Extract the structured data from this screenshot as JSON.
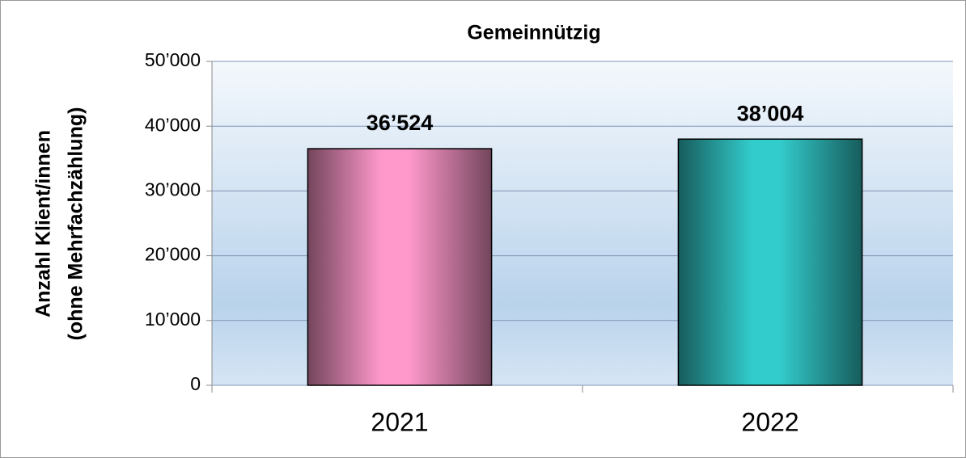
{
  "chart_data": {
    "type": "bar",
    "title": "Gemeinnützig",
    "ylabel": [
      "Anzahl Klient/innen",
      "(ohne Mehrfachzählung)"
    ],
    "categories": [
      "2021",
      "2022"
    ],
    "values": [
      36524,
      38004
    ],
    "value_labels": [
      "36’524",
      "38’004"
    ],
    "colors": [
      "#ff99cc",
      "#33cccc"
    ],
    "ylim": [
      0,
      50000
    ],
    "yticks": [
      0,
      {
        "value": 10000,
        "label": "10’000"
      },
      {
        "value": 20000,
        "label": "20’000"
      },
      {
        "value": 30000,
        "label": "30’000"
      },
      {
        "value": 40000,
        "label": "40’000"
      },
      {
        "value": 50000,
        "label": "50’000"
      }
    ],
    "grid": true
  }
}
